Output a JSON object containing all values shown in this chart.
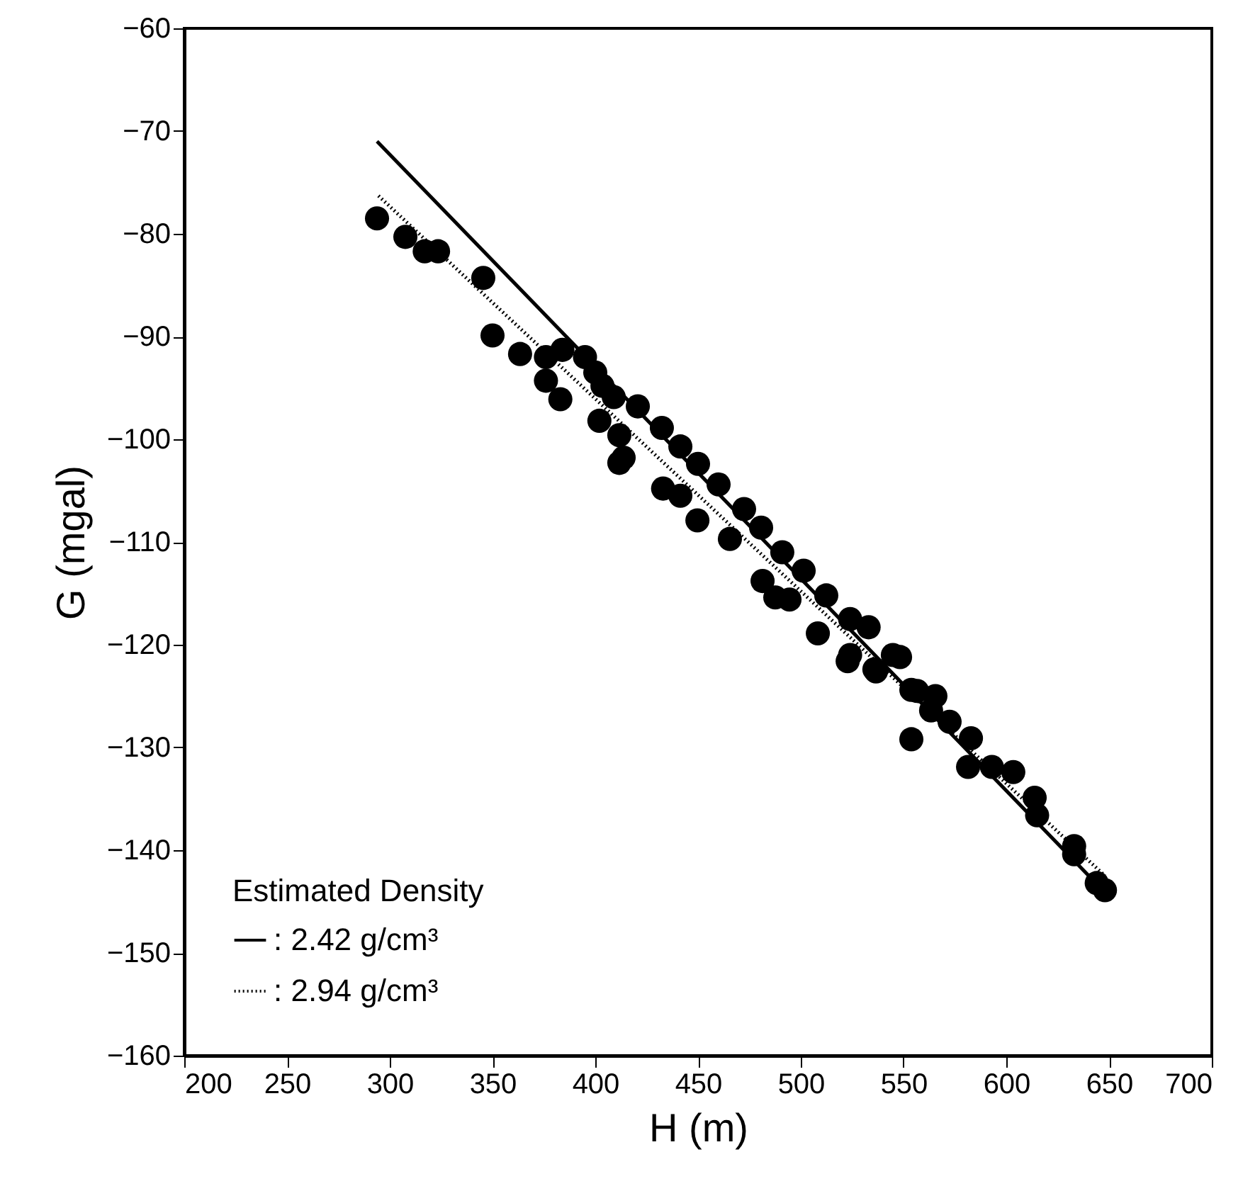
{
  "chart_data": {
    "type": "scatter",
    "xlabel": "H (m)",
    "ylabel": "G (mgal)",
    "legend_title": "Estimated Density",
    "legend": "bottom left",
    "grid": false,
    "xlim": [
      200,
      700
    ],
    "xticks": [
      200,
      250,
      300,
      350,
      400,
      450,
      500,
      550,
      600,
      650,
      700
    ],
    "ylim": [
      -160,
      -60
    ],
    "yticks": [
      -160,
      -150,
      -140,
      -130,
      -120,
      -110,
      -100,
      -90,
      -80,
      -70,
      -60
    ],
    "series": [
      {
        "color": "#000000",
        "marker": "circle",
        "x": [
          293.8,
          307.6,
          317,
          323.5,
          345.5,
          350,
          363.4,
          376,
          384,
          395,
          400,
          376,
          383,
          403.5,
          409,
          420.7,
          402,
          411.7,
          432.4,
          413.8,
          411.7,
          441.4,
          450,
          433,
          441.4,
          460,
          449.7,
          472.4,
          480.7,
          465.5,
          491,
          501.4,
          481.4,
          487.6,
          494.5,
          512.4,
          524,
          533,
          508.3,
          524,
          544.8,
          535.8,
          553.8,
          522.8,
          536.6,
          548.3,
          556.6,
          565.5,
          563.4,
          572.4,
          582.8,
          553.8,
          581.4,
          593,
          603.4,
          613.8,
          615,
          633,
          633,
          644,
          648
        ],
        "values": [
          -78.5,
          -80.3,
          -81.7,
          -81.7,
          -84.3,
          -89.9,
          -91.7,
          -92,
          -91.3,
          -92,
          -93.5,
          -94.3,
          -96.1,
          -94.8,
          -95.9,
          -96.8,
          -98.2,
          -99.6,
          -98.9,
          -101.8,
          -102.3,
          -100.7,
          -102.4,
          -104.8,
          -105.5,
          -104.4,
          -107.9,
          -106.8,
          -108.6,
          -109.7,
          -111,
          -112.8,
          -113.8,
          -115.4,
          -115.6,
          -115.2,
          -117.5,
          -118.3,
          -118.9,
          -121,
          -121,
          -122.4,
          -124.4,
          -121.6,
          -122.6,
          -121.2,
          -124.5,
          -125,
          -126.4,
          -127.5,
          -129.1,
          -129.2,
          -131.9,
          -131.9,
          -132.4,
          -134.9,
          -136.6,
          -139.6,
          -140.4,
          -143.2,
          -143.9
        ]
      },
      {
        "type": "line",
        "name": ": 2.42 g/cm³",
        "color": "#000000",
        "line_style": "solid",
        "x": [
          293.8,
          645
        ],
        "values": [
          -71,
          -143.5
        ]
      },
      {
        "type": "line",
        "name": ": 2.94 g/cm³",
        "color": "#000000",
        "line_style": "dotted",
        "x": [
          294.5,
          648
        ],
        "values": [
          -76.3,
          -142.5
        ]
      }
    ]
  }
}
